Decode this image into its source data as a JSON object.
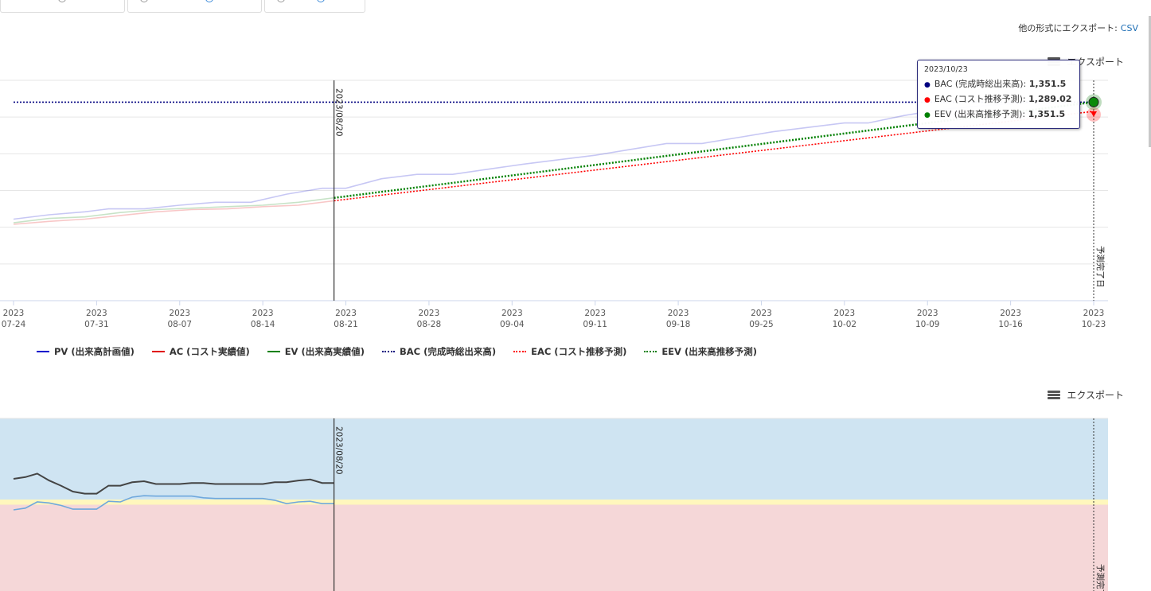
{
  "export_other": {
    "label": "他の形式にエクスポート:",
    "link": "CSV"
  },
  "export_label": "エクスポート",
  "chart_data": [
    {
      "type": "line",
      "x_ticks": [
        {
          "year": "2023",
          "date": "07-24"
        },
        {
          "year": "2023",
          "date": "07-31"
        },
        {
          "year": "2023",
          "date": "08-07"
        },
        {
          "year": "2023",
          "date": "08-14"
        },
        {
          "year": "2023",
          "date": "08-21"
        },
        {
          "year": "2023",
          "date": "08-28"
        },
        {
          "year": "2023",
          "date": "09-04"
        },
        {
          "year": "2023",
          "date": "09-11"
        },
        {
          "year": "2023",
          "date": "09-18"
        },
        {
          "year": "2023",
          "date": "09-25"
        },
        {
          "year": "2023",
          "date": "10-02"
        },
        {
          "year": "2023",
          "date": "10-09"
        },
        {
          "year": "2023",
          "date": "10-16"
        },
        {
          "year": "2023",
          "date": "10-23"
        }
      ],
      "xlim": [
        "2023-07-24",
        "2023-10-23"
      ],
      "ylim": [
        0,
        1500
      ],
      "grid": true,
      "plot_lines": [
        {
          "date": "2023-08-20",
          "label": "2023/08/20",
          "style": "solid"
        },
        {
          "date": "2023-10-23",
          "label": "予測完了日",
          "style": "dotted"
        }
      ],
      "series": [
        {
          "name": "PV (出来高計画値)",
          "color": "#0000cc",
          "style": "solid",
          "points": [
            [
              "2023-07-24",
              555
            ],
            [
              "2023-07-27",
              585
            ],
            [
              "2023-07-30",
              605
            ],
            [
              "2023-08-01",
              625
            ],
            [
              "2023-08-04",
              625
            ],
            [
              "2023-08-07",
              650
            ],
            [
              "2023-08-10",
              670
            ],
            [
              "2023-08-13",
              670
            ],
            [
              "2023-08-16",
              725
            ],
            [
              "2023-08-19",
              765
            ],
            [
              "2023-08-21",
              765
            ],
            [
              "2023-08-24",
              830
            ],
            [
              "2023-08-27",
              860
            ],
            [
              "2023-08-30",
              860
            ],
            [
              "2023-09-02",
              895
            ],
            [
              "2023-09-05",
              930
            ],
            [
              "2023-09-08",
              960
            ],
            [
              "2023-09-11",
              990
            ],
            [
              "2023-09-14",
              1030
            ],
            [
              "2023-09-17",
              1070
            ],
            [
              "2023-09-20",
              1070
            ],
            [
              "2023-09-23",
              1110
            ],
            [
              "2023-09-26",
              1150
            ],
            [
              "2023-09-29",
              1180
            ],
            [
              "2023-10-02",
              1210
            ],
            [
              "2023-10-04",
              1210
            ],
            [
              "2023-10-07",
              1260
            ],
            [
              "2023-10-10",
              1300
            ],
            [
              "2023-10-14",
              1330
            ],
            [
              "2023-10-18",
              1351.5
            ]
          ]
        },
        {
          "name": "AC (コスト実績値)",
          "color": "#e00000",
          "style": "solid",
          "points": [
            [
              "2023-07-24",
              520
            ],
            [
              "2023-07-27",
              540
            ],
            [
              "2023-07-30",
              555
            ],
            [
              "2023-08-02",
              580
            ],
            [
              "2023-08-05",
              605
            ],
            [
              "2023-08-08",
              620
            ],
            [
              "2023-08-11",
              625
            ],
            [
              "2023-08-14",
              640
            ],
            [
              "2023-08-17",
              650
            ],
            [
              "2023-08-20",
              680
            ]
          ]
        },
        {
          "name": "EV (出来高実績値)",
          "color": "#008000",
          "style": "solid",
          "points": [
            [
              "2023-07-24",
              530
            ],
            [
              "2023-07-27",
              560
            ],
            [
              "2023-07-30",
              570
            ],
            [
              "2023-08-02",
              600
            ],
            [
              "2023-08-05",
              620
            ],
            [
              "2023-08-08",
              630
            ],
            [
              "2023-08-11",
              640
            ],
            [
              "2023-08-14",
              650
            ],
            [
              "2023-08-17",
              670
            ],
            [
              "2023-08-20",
              700
            ]
          ]
        },
        {
          "name": "BAC (完成時総出来高)",
          "color": "#000080",
          "style": "dotted",
          "points": [
            [
              "2023-07-24",
              1351.5
            ],
            [
              "2023-10-23",
              1351.5
            ]
          ]
        },
        {
          "name": "EAC (コスト推移予測)",
          "color": "#ff0000",
          "style": "dotted",
          "points": [
            [
              "2023-08-20",
              680
            ],
            [
              "2023-10-23",
              1289.02
            ]
          ]
        },
        {
          "name": "EEV (出来高推移予測)",
          "color": "#008000",
          "style": "dotted",
          "points": [
            [
              "2023-08-20",
              700
            ],
            [
              "2023-10-23",
              1351.5
            ]
          ]
        }
      ]
    },
    {
      "type": "line",
      "xlim": [
        "2023-07-24",
        "2023-10-23"
      ],
      "ylim": [
        0.75,
        1.25
      ],
      "bands": [
        {
          "from": 1.015,
          "to": 1.25,
          "color": "#cfe4f2"
        },
        {
          "from": 1.0,
          "to": 1.015,
          "color": "#fff7bd"
        },
        {
          "from": 0.75,
          "to": 1.0,
          "color": "#f5d7d8"
        }
      ],
      "plot_lines": [
        {
          "date": "2023-08-20",
          "label": "2023/08/20",
          "style": "solid"
        },
        {
          "date": "2023-10-23",
          "label": "予測完了日",
          "style": "dotted"
        }
      ],
      "series": [
        {
          "name": "index-dark",
          "color": "#444444",
          "style": "solid",
          "points": [
            [
              "2023-07-24",
              1.075
            ],
            [
              "2023-07-25",
              1.08
            ],
            [
              "2023-07-26",
              1.09
            ],
            [
              "2023-07-27",
              1.07
            ],
            [
              "2023-07-28",
              1.055
            ],
            [
              "2023-07-29",
              1.038
            ],
            [
              "2023-07-30",
              1.032
            ],
            [
              "2023-07-31",
              1.032
            ],
            [
              "2023-08-01",
              1.055
            ],
            [
              "2023-08-02",
              1.055
            ],
            [
              "2023-08-03",
              1.065
            ],
            [
              "2023-08-04",
              1.068
            ],
            [
              "2023-08-05",
              1.06
            ],
            [
              "2023-08-07",
              1.06
            ],
            [
              "2023-08-08",
              1.063
            ],
            [
              "2023-08-09",
              1.063
            ],
            [
              "2023-08-10",
              1.06
            ],
            [
              "2023-08-14",
              1.06
            ],
            [
              "2023-08-15",
              1.065
            ],
            [
              "2023-08-16",
              1.065
            ],
            [
              "2023-08-17",
              1.07
            ],
            [
              "2023-08-18",
              1.073
            ],
            [
              "2023-08-19",
              1.063
            ],
            [
              "2023-08-20",
              1.063
            ]
          ]
        },
        {
          "name": "index-light",
          "color": "#6fa8dc",
          "style": "solid",
          "points": [
            [
              "2023-07-24",
              0.985
            ],
            [
              "2023-07-25",
              0.99
            ],
            [
              "2023-07-26",
              1.008
            ],
            [
              "2023-07-27",
              1.005
            ],
            [
              "2023-07-28",
              0.998
            ],
            [
              "2023-07-29",
              0.987
            ],
            [
              "2023-07-31",
              0.987
            ],
            [
              "2023-08-01",
              1.01
            ],
            [
              "2023-08-02",
              1.008
            ],
            [
              "2023-08-03",
              1.022
            ],
            [
              "2023-08-04",
              1.026
            ],
            [
              "2023-08-05",
              1.025
            ],
            [
              "2023-08-08",
              1.025
            ],
            [
              "2023-08-09",
              1.02
            ],
            [
              "2023-08-10",
              1.018
            ],
            [
              "2023-08-14",
              1.018
            ],
            [
              "2023-08-15",
              1.013
            ],
            [
              "2023-08-16",
              1.003
            ],
            [
              "2023-08-17",
              1.008
            ],
            [
              "2023-08-18",
              1.01
            ],
            [
              "2023-08-19",
              1.003
            ],
            [
              "2023-08-20",
              1.003
            ]
          ]
        }
      ]
    }
  ],
  "tooltip": {
    "date": "2023/10/23",
    "rows": [
      {
        "label": "BAC (完成時総出来高):",
        "value": "1,351.5",
        "color": "#000080"
      },
      {
        "label": "EAC (コスト推移予測):",
        "value": "1,289.02",
        "color": "#ff0000"
      },
      {
        "label": "EEV (出来高推移予測):",
        "value": "1,351.5",
        "color": "#008000"
      }
    ]
  },
  "legend": [
    {
      "label": "PV (出来高計画値)",
      "color": "#0000cc",
      "style": "solid"
    },
    {
      "label": "AC (コスト実績値)",
      "color": "#e00000",
      "style": "solid"
    },
    {
      "label": "EV (出来高実績値)",
      "color": "#008000",
      "style": "solid"
    },
    {
      "label": "BAC (完成時総出来高)",
      "color": "#000080",
      "style": "dotted"
    },
    {
      "label": "EAC (コスト推移予測)",
      "color": "#ff0000",
      "style": "dotted"
    },
    {
      "label": "EEV (出来高推移予測)",
      "color": "#008000",
      "style": "dotted"
    }
  ]
}
